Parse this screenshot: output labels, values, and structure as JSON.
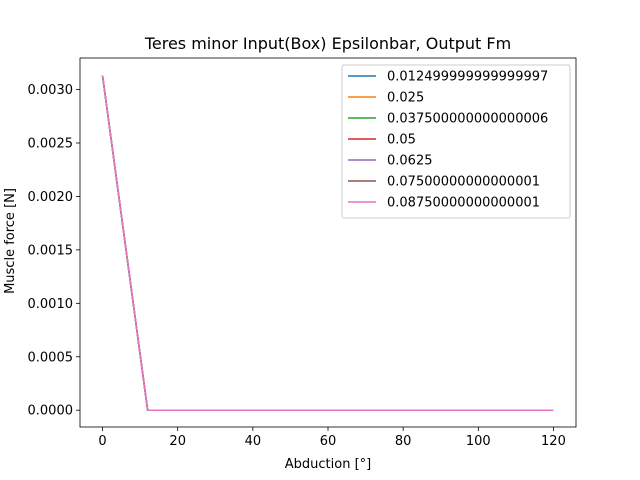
{
  "chart_data": {
    "type": "line",
    "title": "Teres minor Input(Box) Epsilonbar, Output Fm",
    "xlabel": "Abduction [°]",
    "ylabel": "Muscle force [N]",
    "x": [
      0,
      12,
      24,
      36,
      48,
      60,
      72,
      84,
      96,
      108,
      120
    ],
    "xlim": [
      -6,
      126
    ],
    "ylim": [
      -0.000157,
      0.003295
    ],
    "xticks": [
      0,
      20,
      40,
      60,
      80,
      100,
      120
    ],
    "xtick_labels": [
      "0",
      "20",
      "40",
      "60",
      "80",
      "100",
      "120"
    ],
    "yticks": [
      0.0,
      0.0005,
      0.001,
      0.0015,
      0.002,
      0.0025,
      0.003
    ],
    "ytick_labels": [
      "0.0000",
      "0.0005",
      "0.0010",
      "0.0015",
      "0.0020",
      "0.0025",
      "0.0030"
    ],
    "grid": false,
    "legend_position": "upper right",
    "series": [
      {
        "name": "0.012499999999999997",
        "color": "#1f77b4",
        "values": [
          0.00313,
          0,
          0,
          0,
          0,
          0,
          0,
          0,
          0,
          0,
          0
        ]
      },
      {
        "name": "0.025",
        "color": "#ff7f0e",
        "values": [
          0.00313,
          0,
          0,
          0,
          0,
          0,
          0,
          0,
          0,
          0,
          0
        ]
      },
      {
        "name": "0.037500000000000006",
        "color": "#2ca02c",
        "values": [
          0.00313,
          0,
          0,
          0,
          0,
          0,
          0,
          0,
          0,
          0,
          0
        ]
      },
      {
        "name": "0.05",
        "color": "#d62728",
        "values": [
          0.00313,
          0,
          0,
          0,
          0,
          0,
          0,
          0,
          0,
          0,
          0
        ]
      },
      {
        "name": "0.0625",
        "color": "#9467bd",
        "values": [
          0.00313,
          0,
          0,
          0,
          0,
          0,
          0,
          0,
          0,
          0,
          0
        ]
      },
      {
        "name": "0.07500000000000001",
        "color": "#8c564b",
        "values": [
          0.00313,
          0,
          0,
          0,
          0,
          0,
          0,
          0,
          0,
          0,
          0
        ]
      },
      {
        "name": "0.08750000000000001",
        "color": "#e377c2",
        "values": [
          0.00313,
          0,
          0,
          0,
          0,
          0,
          0,
          0,
          0,
          0,
          0
        ]
      }
    ]
  }
}
